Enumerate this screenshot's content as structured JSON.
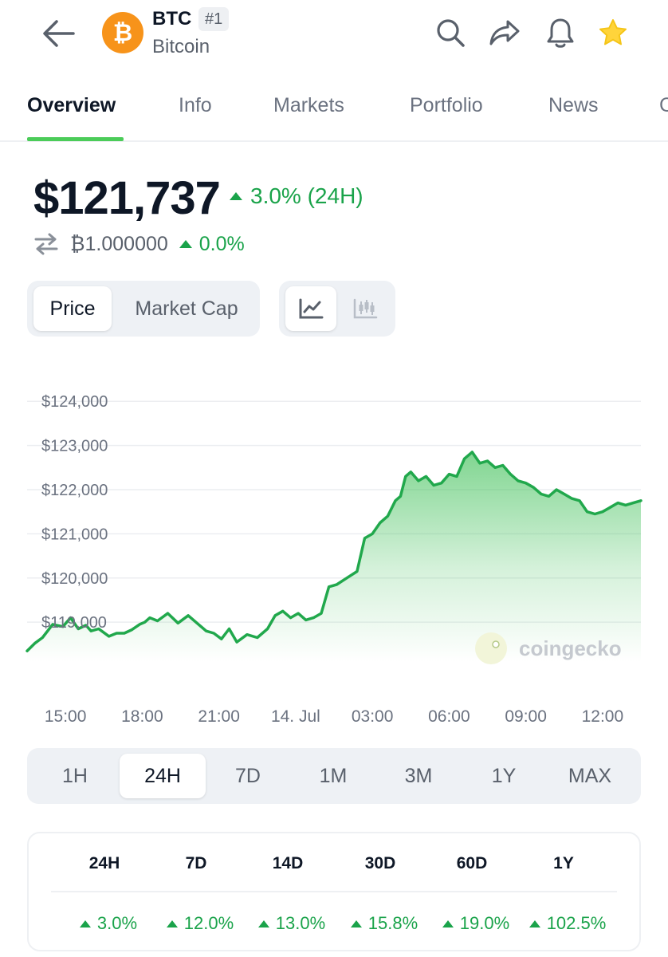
{
  "header": {
    "symbol": "BTC",
    "rank": "#1",
    "name": "Bitcoin",
    "logo_glyph": "₿",
    "icons": [
      "back-arrow-icon",
      "search-icon",
      "share-icon",
      "bell-icon",
      "star-icon"
    ]
  },
  "tabs": [
    "Overview",
    "Info",
    "Markets",
    "Portfolio",
    "News",
    "C"
  ],
  "price": {
    "value": "$121,737",
    "change_24h": "3.0% (24H)",
    "btc_value": "₿1.000000",
    "btc_change": "0.0%"
  },
  "chart_toggle": {
    "price": "Price",
    "market_cap": "Market Cap"
  },
  "watermark": "coingecko",
  "range": [
    "1H",
    "24H",
    "7D",
    "1M",
    "3M",
    "1Y",
    "MAX"
  ],
  "performance": {
    "headers": [
      "24H",
      "7D",
      "14D",
      "30D",
      "60D",
      "1Y"
    ],
    "values": [
      "3.0%",
      "12.0%",
      "13.0%",
      "15.8%",
      "19.0%",
      "102.5%"
    ]
  },
  "colors": {
    "up": "#1aa34a",
    "line": "#21a84c",
    "accent": "#4bcc59",
    "bitcoin": "#f7931a"
  },
  "chart_data": {
    "type": "area",
    "ylim": [
      118100,
      124600
    ],
    "y_ticks": [
      "$124,000",
      "$123,000",
      "$122,000",
      "$121,000",
      "$120,000",
      "$119,000"
    ],
    "y_tick_values": [
      124000,
      123000,
      122000,
      121000,
      120000,
      119000
    ],
    "x_ticks": [
      "15:00",
      "18:00",
      "21:00",
      "14. Jul",
      "03:00",
      "06:00",
      "09:00",
      "12:00"
    ],
    "x_tick_hours": [
      0,
      3,
      6,
      9,
      12,
      15,
      18,
      21
    ],
    "x_range_hours": [
      -1.5,
      22.5
    ],
    "x": [
      -1.5,
      -1.2,
      -0.9,
      -0.5,
      -0.1,
      0.2,
      0.5,
      0.8,
      1.0,
      1.3,
      1.7,
      2.0,
      2.3,
      2.6,
      2.9,
      3.1,
      3.3,
      3.6,
      4.0,
      4.4,
      4.8,
      5.2,
      5.5,
      5.8,
      6.1,
      6.4,
      6.7,
      7.1,
      7.5,
      7.9,
      8.2,
      8.5,
      8.8,
      9.1,
      9.4,
      9.7,
      10.0,
      10.3,
      10.6,
      11.0,
      11.4,
      11.7,
      12.0,
      12.3,
      12.6,
      12.9,
      13.1,
      13.3,
      13.5,
      13.8,
      14.1,
      14.4,
      14.7,
      15.0,
      15.3,
      15.6,
      15.9,
      16.2,
      16.5,
      16.8,
      17.1,
      17.4,
      17.7,
      18.0,
      18.3,
      18.6,
      18.9,
      19.2,
      19.5,
      19.8,
      20.1,
      20.4,
      20.7,
      21.0,
      21.3,
      21.6,
      21.9,
      22.2,
      22.5
    ],
    "values": [
      118350,
      118520,
      118650,
      118950,
      118900,
      119100,
      118850,
      118930,
      118800,
      118850,
      118680,
      118750,
      118750,
      118830,
      118950,
      119000,
      119100,
      119030,
      119200,
      118980,
      119150,
      118950,
      118800,
      118750,
      118620,
      118850,
      118550,
      118720,
      118650,
      118850,
      119150,
      119250,
      119100,
      119200,
      119050,
      119100,
      119200,
      119800,
      119850,
      120000,
      120150,
      120900,
      121000,
      121250,
      121400,
      121750,
      121850,
      122300,
      122400,
      122200,
      122300,
      122100,
      122150,
      122350,
      122300,
      122700,
      122850,
      122600,
      122650,
      122500,
      122550,
      122350,
      122200,
      122150,
      122050,
      121900,
      121850,
      122000,
      121900,
      121800,
      121750,
      121500,
      121450,
      121500,
      121600,
      121700,
      121650,
      121700,
      121750
    ]
  }
}
